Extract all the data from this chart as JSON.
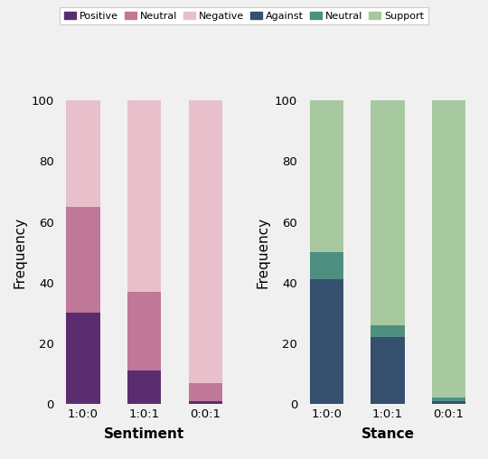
{
  "categories": [
    "1:0:0",
    "1:0:1",
    "0:0:1"
  ],
  "sentiment": {
    "positive": [
      30,
      11,
      1
    ],
    "neutral": [
      35,
      26,
      6
    ],
    "negative": [
      35,
      63,
      93
    ],
    "colors": {
      "positive": "#5c2d6e",
      "neutral": "#c07898",
      "negative": "#e8c0cc"
    },
    "title": "Sentiment",
    "ylabel": "Frequency"
  },
  "stance": {
    "against": [
      41,
      22,
      1
    ],
    "neutral": [
      9,
      4,
      1
    ],
    "support": [
      50,
      74,
      98
    ],
    "colors": {
      "against": "#354f6e",
      "neutral": "#4e9080",
      "support": "#a8c8a0"
    },
    "title": "Stance",
    "ylabel": "Frequency"
  },
  "ylim": [
    0,
    100
  ],
  "yticks": [
    0,
    20,
    40,
    60,
    80,
    100
  ],
  "background_color": "#f0f0f0",
  "bar_width": 0.55
}
